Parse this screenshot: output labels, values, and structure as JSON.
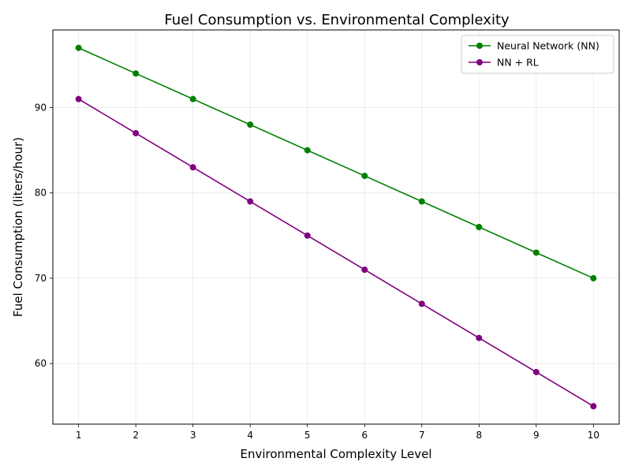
{
  "chart_data": {
    "type": "line",
    "title": "Fuel Consumption vs. Environmental Complexity",
    "xlabel": "Environmental Complexity Level",
    "ylabel": "Fuel Consumption (liters/hour)",
    "x": [
      1,
      2,
      3,
      4,
      5,
      6,
      7,
      8,
      9,
      10
    ],
    "xlim": [
      0.55,
      10.45
    ],
    "ylim": [
      52.9,
      99.1
    ],
    "xticks": [
      1,
      2,
      3,
      4,
      5,
      6,
      7,
      8,
      9,
      10
    ],
    "yticks": [
      60,
      70,
      80,
      90
    ],
    "grid": true,
    "legend_position": "top-right",
    "series": [
      {
        "name": "Neural Network (NN)",
        "color": "#008000",
        "marker": "circle",
        "values": [
          97,
          94,
          91,
          88,
          85,
          82,
          79,
          76,
          73,
          70
        ]
      },
      {
        "name": "NN + RL",
        "color": "#800080",
        "marker": "circle",
        "values": [
          91,
          87,
          83,
          79,
          75,
          71,
          67,
          63,
          59,
          55
        ]
      }
    ]
  }
}
